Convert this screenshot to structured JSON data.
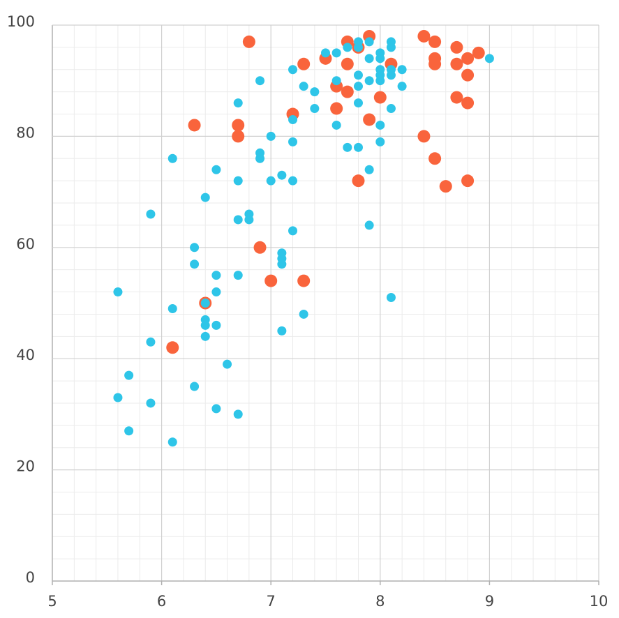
{
  "chart_data": {
    "type": "scatter",
    "xlim": [
      5,
      10
    ],
    "xticks": [
      5,
      6,
      7,
      8,
      9,
      10
    ],
    "ylim": [
      0,
      100
    ],
    "yticks": [
      0,
      20,
      40,
      60,
      80,
      100
    ],
    "grid": true,
    "series": [
      {
        "color": "#f9643c",
        "x": [
          7.9,
          8.4,
          7.7,
          8.5,
          6.8,
          7.8,
          8.7,
          8.9,
          7.5,
          8.5,
          8.8,
          7.3,
          7.7,
          8.1,
          8.5,
          8.7,
          8.8,
          7.6,
          7.7,
          8.0,
          8.7,
          8.8,
          7.6,
          7.2,
          7.9,
          6.3,
          6.7,
          6.7,
          8.4,
          8.5,
          7.8,
          8.8,
          8.6,
          6.9,
          7.0,
          7.3,
          6.4,
          6.1
        ],
        "values": [
          98,
          98,
          97,
          97,
          97,
          96,
          96,
          95,
          94,
          94,
          94,
          93,
          93,
          93,
          93,
          93,
          91,
          89,
          88,
          87,
          87,
          86,
          85,
          84,
          83,
          82,
          82,
          80,
          80,
          76,
          72,
          72,
          71,
          60,
          54,
          54,
          50,
          42
        ]
      },
      {
        "color": "#2ec5e8",
        "x": [
          7.5,
          7.6,
          7.7,
          7.8,
          7.9,
          7.8,
          8.0,
          8.0,
          8.1,
          8.1,
          7.9,
          9.0,
          7.2,
          8.0,
          8.1,
          8.2,
          8.0,
          8.1,
          7.8,
          7.6,
          7.9,
          8.0,
          6.9,
          7.3,
          7.8,
          8.2,
          7.4,
          6.7,
          7.8,
          7.4,
          8.1,
          7.2,
          7.6,
          8.0,
          7.0,
          7.2,
          8.0,
          7.7,
          7.8,
          6.9,
          6.9,
          6.1,
          6.5,
          7.9,
          7.1,
          6.7,
          7.0,
          7.2,
          6.4,
          5.9,
          6.8,
          6.8,
          6.7,
          7.9,
          7.2,
          6.3,
          7.1,
          7.1,
          7.1,
          6.3,
          6.5,
          6.7,
          5.6,
          6.5,
          8.1,
          6.4,
          6.1,
          7.3,
          6.4,
          6.4,
          6.5,
          7.1,
          6.4,
          5.9,
          6.6,
          5.7,
          6.3,
          5.6,
          5.9,
          6.5,
          6.7,
          5.7,
          6.1
        ],
        "values": [
          95,
          95,
          96,
          97,
          97,
          96,
          95,
          94,
          97,
          96,
          94,
          94,
          92,
          92,
          92,
          92,
          91,
          91,
          91,
          90,
          90,
          90,
          90,
          89,
          89,
          89,
          88,
          86,
          86,
          85,
          85,
          83,
          82,
          82,
          80,
          79,
          79,
          78,
          78,
          77,
          76,
          76,
          74,
          74,
          73,
          72,
          72,
          72,
          69,
          66,
          66,
          65,
          65,
          64,
          63,
          60,
          59,
          58,
          57,
          57,
          55,
          55,
          52,
          52,
          51,
          50,
          49,
          48,
          47,
          46,
          46,
          45,
          44,
          43,
          39,
          37,
          35,
          33,
          32,
          31,
          30,
          27,
          25
        ]
      }
    ]
  }
}
